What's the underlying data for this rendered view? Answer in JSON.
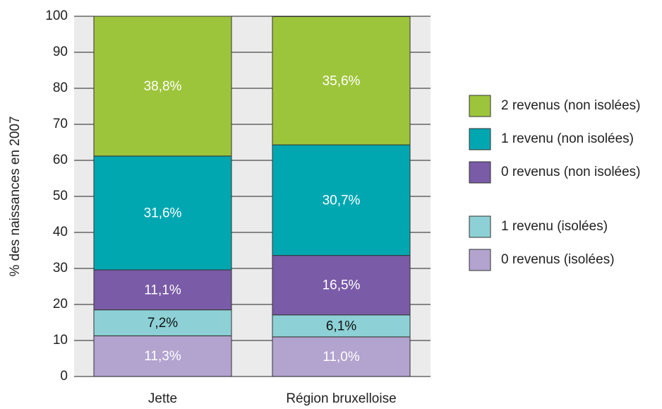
{
  "chart_data": {
    "type": "stacked_bar",
    "y_label": "% des naissances en 2007",
    "categories": [
      "Jette",
      "Région bruxelloise"
    ],
    "ylim": [
      0,
      100
    ],
    "yticks": [
      0,
      10,
      20,
      30,
      40,
      50,
      60,
      70,
      80,
      90,
      100
    ],
    "grid": true,
    "legend": "right",
    "series": [
      {
        "name": "0 revenus (isolées)",
        "color": "#b3a3cf",
        "label_color": "#ffffff",
        "values": [
          11.3,
          11.0
        ],
        "value_labels": [
          "11,3%",
          "11,0%"
        ]
      },
      {
        "name": "1 revenu (isolées)",
        "color": "#8dd1d6",
        "label_color": "#111111",
        "values": [
          7.2,
          6.1
        ],
        "value_labels": [
          "7,2%",
          "6,1%"
        ]
      },
      {
        "name": "0 revenus (non isolées)",
        "color": "#7a5ba7",
        "label_color": "#ffffff",
        "values": [
          11.1,
          16.5
        ],
        "value_labels": [
          "11,1%",
          "16,5%"
        ]
      },
      {
        "name": "1 revenu (non isolées)",
        "color": "#00a7b1",
        "label_color": "#ffffff",
        "values": [
          31.6,
          30.7
        ],
        "value_labels": [
          "31,6%",
          "30,7%"
        ]
      },
      {
        "name": "2 revenus (non isolées)",
        "color": "#9dc53b",
        "label_color": "#ffffff",
        "values": [
          38.8,
          35.6
        ],
        "value_labels": [
          "38,8%",
          "35,6%"
        ]
      }
    ]
  }
}
